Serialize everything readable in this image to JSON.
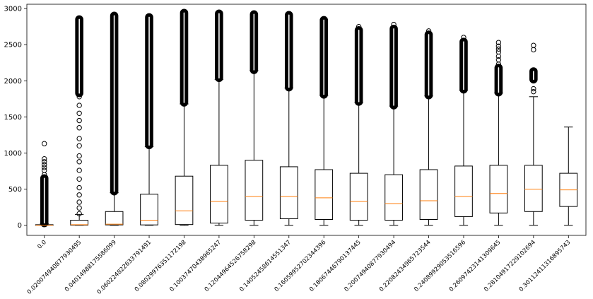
{
  "chart_data": {
    "type": "box",
    "title": "",
    "xlabel": "",
    "ylabel": "",
    "ylim": [
      -140,
      3060
    ],
    "yticks": [
      0,
      500,
      1000,
      1500,
      2000,
      2500,
      3000
    ],
    "grid": false,
    "legend": "none",
    "colors": {
      "box": "#000000",
      "median": "#ff7f0e",
      "flier": "#000000",
      "background": "#ffffff"
    },
    "categories": [
      "0.0",
      "0.020074940877930495",
      "0.04014988175586099",
      "0.060224822633791491",
      "0.08029976351172198",
      "0.10037470438965247",
      "0.12044964526758298",
      "0.14052458614551347",
      "0.16059952702344396",
      "0.18067446790137445",
      "0.20074940877930494",
      "0.22082434965723544",
      "0.24089929053516596",
      "0.26097423141309645",
      "0.28104917229102694",
      "0.30112411316895743"
    ],
    "boxes": [
      {
        "whislo": 0,
        "q1": 0,
        "med": 2,
        "q3": 8,
        "whishi": 20
      },
      {
        "whislo": 0,
        "q1": 2,
        "med": 8,
        "q3": 70,
        "whishi": 150
      },
      {
        "whislo": 0,
        "q1": 5,
        "med": 15,
        "q3": 190,
        "whishi": 450
      },
      {
        "whislo": 0,
        "q1": 5,
        "med": 70,
        "q3": 430,
        "whishi": 1090
      },
      {
        "whislo": 0,
        "q1": 10,
        "med": 200,
        "q3": 680,
        "whishi": 1680
      },
      {
        "whislo": 0,
        "q1": 30,
        "med": 330,
        "q3": 830,
        "whishi": 2020
      },
      {
        "whislo": 0,
        "q1": 70,
        "med": 400,
        "q3": 900,
        "whishi": 2140
      },
      {
        "whislo": 0,
        "q1": 90,
        "med": 400,
        "q3": 810,
        "whishi": 1900
      },
      {
        "whislo": 0,
        "q1": 80,
        "med": 380,
        "q3": 770,
        "whishi": 1800
      },
      {
        "whislo": 0,
        "q1": 70,
        "med": 330,
        "q3": 720,
        "whishi": 1700
      },
      {
        "whislo": 0,
        "q1": 70,
        "med": 300,
        "q3": 700,
        "whishi": 1650
      },
      {
        "whislo": 0,
        "q1": 80,
        "med": 340,
        "q3": 770,
        "whishi": 1790
      },
      {
        "whislo": 0,
        "q1": 120,
        "med": 400,
        "q3": 820,
        "whishi": 1870
      },
      {
        "whislo": 0,
        "q1": 170,
        "med": 440,
        "q3": 830,
        "whishi": 1830
      },
      {
        "whislo": 0,
        "q1": 190,
        "med": 500,
        "q3": 830,
        "whishi": 1780
      },
      {
        "whislo": 0,
        "q1": 260,
        "med": 490,
        "q3": 720,
        "whishi": 1360
      }
    ],
    "fliers": [
      {
        "dense": [
          30,
          650
        ],
        "sparse": [
          700,
          760,
          800,
          840,
          880,
          920,
          1130
        ]
      },
      {
        "dense": [
          1830,
          2850
        ],
        "sparse": [
          160,
          240,
          320,
          420,
          520,
          640,
          760,
          880,
          960,
          1100,
          1200,
          1350,
          1450,
          1550,
          1660,
          1780
        ]
      },
      {
        "dense": [
          470,
          2900
        ],
        "sparse": []
      },
      {
        "dense": [
          1110,
          2880
        ],
        "sparse": []
      },
      {
        "dense": [
          1700,
          2940
        ],
        "sparse": []
      },
      {
        "dense": [
          2040,
          2930
        ],
        "sparse": []
      },
      {
        "dense": [
          2150,
          2920
        ],
        "sparse": []
      },
      {
        "dense": [
          1910,
          2910
        ],
        "sparse": []
      },
      {
        "dense": [
          1810,
          2840
        ],
        "sparse": []
      },
      {
        "dense": [
          1710,
          2700
        ],
        "sparse": [
          2750
        ]
      },
      {
        "dense": [
          1660,
          2720
        ],
        "sparse": [
          2780
        ]
      },
      {
        "dense": [
          1800,
          2640
        ],
        "sparse": [
          2690
        ]
      },
      {
        "dense": [
          1880,
          2540
        ],
        "sparse": [
          2600
        ]
      },
      {
        "dense": [
          1840,
          2180
        ],
        "sparse": [
          2230,
          2290,
          2340,
          2400,
          2440,
          2480,
          2530
        ]
      },
      {
        "dense": [
          2020,
          2130
        ],
        "sparse": [
          1850,
          1890,
          2430,
          2490
        ]
      },
      {
        "dense": [],
        "sparse": []
      }
    ]
  }
}
